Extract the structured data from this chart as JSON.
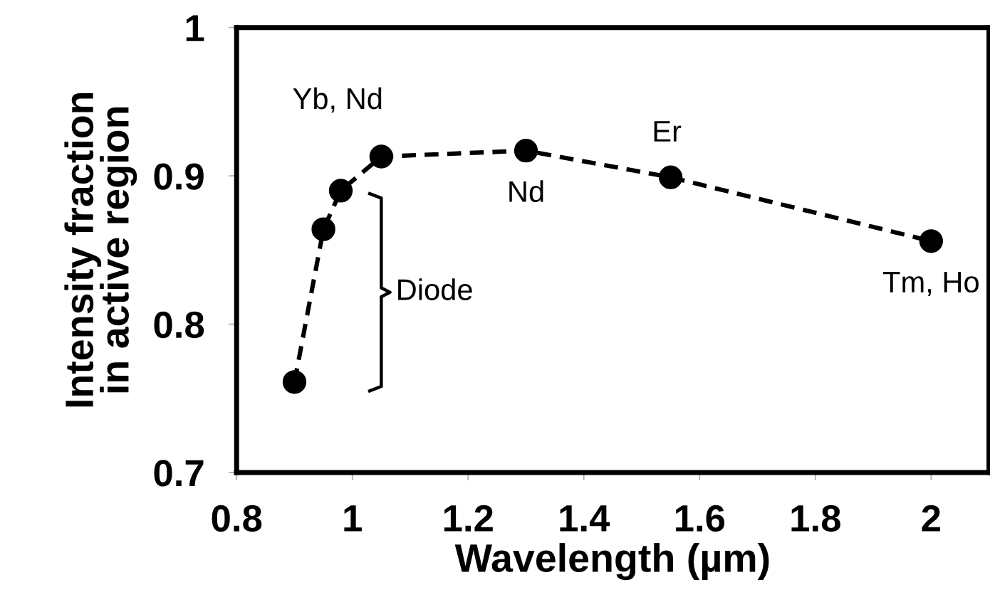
{
  "chart_data": {
    "type": "line",
    "xlabel": "Wavelength (µm)",
    "ylabel": "Intensity fraction\nin active region",
    "x": [
      0.9,
      0.95,
      0.98,
      1.05,
      1.3,
      1.55,
      2.0
    ],
    "series": [
      {
        "color": "#000000",
        "values": [
          0.761,
          0.864,
          0.89,
          0.913,
          0.917,
          0.899,
          0.856
        ]
      }
    ],
    "marker": "circle",
    "line_style": "dashed",
    "xlim": [
      0.8,
      2.1
    ],
    "xticks": [
      0.8,
      1,
      1.2,
      1.4,
      1.6,
      1.8,
      2
    ],
    "ylim": [
      0.7,
      1.0
    ],
    "yticks": [
      0.7,
      0.8,
      0.9,
      1
    ],
    "grid": false,
    "legend": false,
    "annotations": [
      {
        "text": "Yb, Nd",
        "x": 1.05,
        "y": 0.913
      },
      {
        "text": "Nd",
        "x": 1.3,
        "y": 0.917
      },
      {
        "text": "Er",
        "x": 1.55,
        "y": 0.899
      },
      {
        "text": "Tm, Ho",
        "x": 2.0,
        "y": 0.856
      },
      "Diode"
    ]
  }
}
